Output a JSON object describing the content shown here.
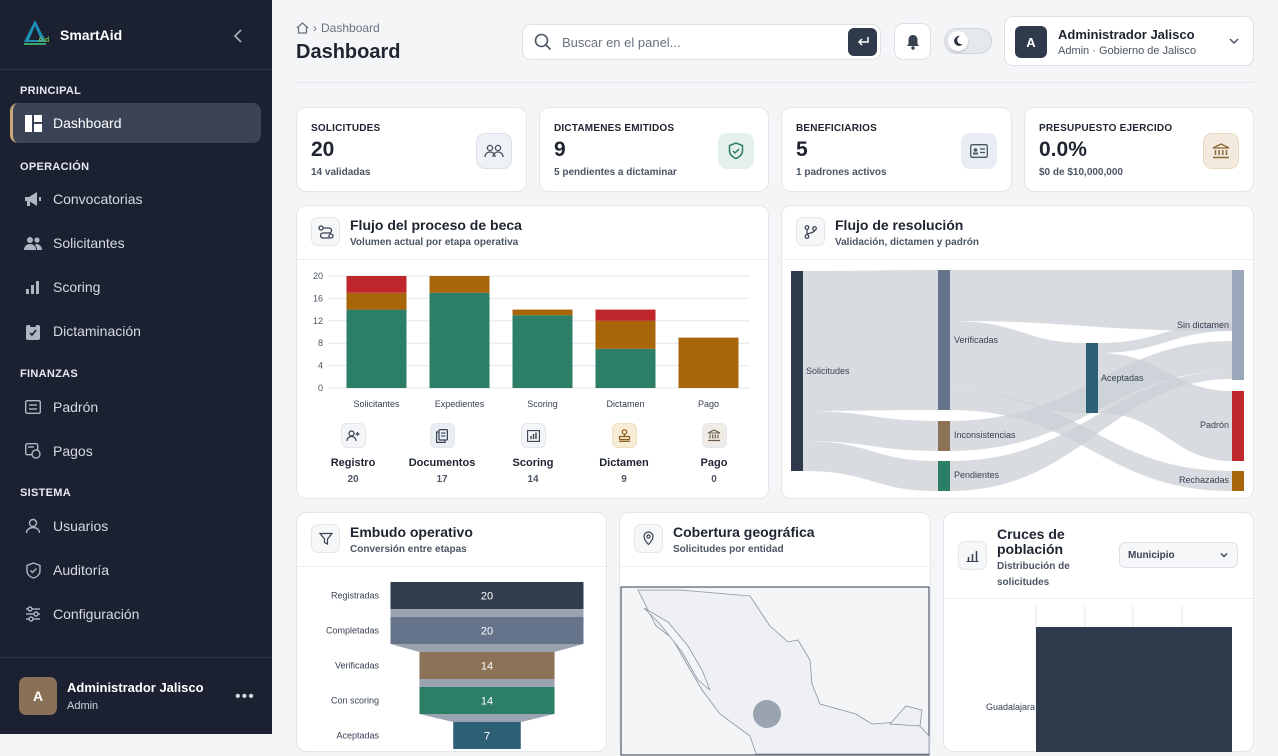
{
  "sidebar": {
    "brand": "SmartAid",
    "sections": {
      "principal": "PRINCIPAL",
      "operacion": "OPERACIÓN",
      "finanzas": "FINANZAS",
      "sistema": "SISTEMA"
    },
    "items": [
      {
        "label": "Dashboard",
        "icon": "dashboard-icon"
      },
      {
        "label": "Convocatorias",
        "icon": "megaphone-icon"
      },
      {
        "label": "Solicitantes",
        "icon": "users-icon"
      },
      {
        "label": "Scoring",
        "icon": "bar-chart-icon"
      },
      {
        "label": "Dictaminación",
        "icon": "clipboard-icon"
      },
      {
        "label": "Padrón",
        "icon": "list-icon"
      },
      {
        "label": "Pagos",
        "icon": "payments-icon"
      },
      {
        "label": "Usuarios",
        "icon": "user-icon"
      },
      {
        "label": "Auditoría",
        "icon": "shield-icon"
      },
      {
        "label": "Configuración",
        "icon": "sliders-icon"
      }
    ],
    "footer_user": {
      "initial": "A",
      "name": "Administrador Jalisco",
      "role": "Admin"
    }
  },
  "header": {
    "breadcrumb": "Dashboard",
    "title": "Dashboard",
    "search_placeholder": "Buscar en el panel...",
    "user": {
      "initial": "A",
      "name": "Administrador Jalisco",
      "subtitle": "Admin · Gobierno de Jalisco"
    }
  },
  "kpis": [
    {
      "label": "SOLICITUDES",
      "value": "20",
      "sub": "14 validadas",
      "icon": "users-icon",
      "tint": "#eef1f5",
      "color": "#4b5563"
    },
    {
      "label": "DICTAMENES EMITIDOS",
      "value": "9",
      "sub": "5 pendientes a dictaminar",
      "icon": "shield-check-icon",
      "tint": "#e3f1ea",
      "color": "#2e7d63"
    },
    {
      "label": "BENEFICIARIOS",
      "value": "5",
      "sub": "1 padrones activos",
      "icon": "id-card-icon",
      "tint": "#e8edf3",
      "color": "#4b5563"
    },
    {
      "label": "PRESUPUESTO EJERCIDO",
      "value": "0.0%",
      "sub": "$0 de $10,000,000",
      "icon": "bank-icon",
      "tint": "#f3e9dc",
      "color": "#8a6a3a"
    }
  ],
  "flow": {
    "title": "Flujo del proceso de beca",
    "subtitle": "Volumen actual por etapa operativa",
    "stages": [
      {
        "name": "Registro",
        "value": "20",
        "icon": "user-plus-icon",
        "tint": "#f4f5f7"
      },
      {
        "name": "Documentos",
        "value": "17",
        "icon": "documents-icon",
        "tint": "#e9eef5"
      },
      {
        "name": "Scoring",
        "value": "14",
        "icon": "bar-chart-icon",
        "tint": "#f4f5f7"
      },
      {
        "name": "Dictamen",
        "value": "9",
        "icon": "stamp-icon",
        "tint": "#f8ecd6"
      },
      {
        "name": "Pago",
        "value": "0",
        "icon": "bank-icon",
        "tint": "#efece7"
      }
    ]
  },
  "sankey": {
    "title": "Flujo de resolución",
    "subtitle": "Validación, dictamen y padrón",
    "nodes": [
      "Solicitudes",
      "Verificadas",
      "Inconsistencias",
      "Pendientes",
      "Aceptadas",
      "Sin dictamen",
      "Padrón",
      "Rechazadas"
    ]
  },
  "funnel": {
    "title": "Embudo operativo",
    "subtitle": "Conversión entre etapas",
    "stages": [
      {
        "label": "Registradas",
        "value": 20,
        "color": "#323d4f"
      },
      {
        "label": "Completadas",
        "value": 20,
        "color": "#66748b"
      },
      {
        "label": "Verificadas",
        "value": 14,
        "color": "#8c7256"
      },
      {
        "label": "Con scoring",
        "value": 14,
        "color": "#2d7e67"
      },
      {
        "label": "Aceptadas",
        "value": 7,
        "color": "#2d6074"
      }
    ]
  },
  "geo": {
    "title": "Cobertura geográfica",
    "subtitle": "Solicitudes por entidad"
  },
  "population": {
    "title": "Cruces de población",
    "subtitle": "Distribución de solicitudes",
    "select_value": "Municipio",
    "category": "Guadalajara"
  },
  "chart_data": [
    {
      "type": "bar",
      "stacked": true,
      "categories": [
        "Solicitantes",
        "Expedientes",
        "Scoring",
        "Dictamen",
        "Pago"
      ],
      "ylim": [
        0,
        20
      ],
      "yticks": [
        0,
        4,
        8,
        12,
        16,
        20
      ],
      "grid": true,
      "series": [
        {
          "color": "#2d7e67",
          "values": [
            14,
            17,
            13,
            7,
            0
          ]
        },
        {
          "color": "#a8650a",
          "values": [
            3,
            3,
            1,
            5,
            9
          ]
        },
        {
          "color": "#c0272d",
          "values": [
            3,
            0,
            0,
            2,
            0
          ]
        }
      ]
    }
  ]
}
